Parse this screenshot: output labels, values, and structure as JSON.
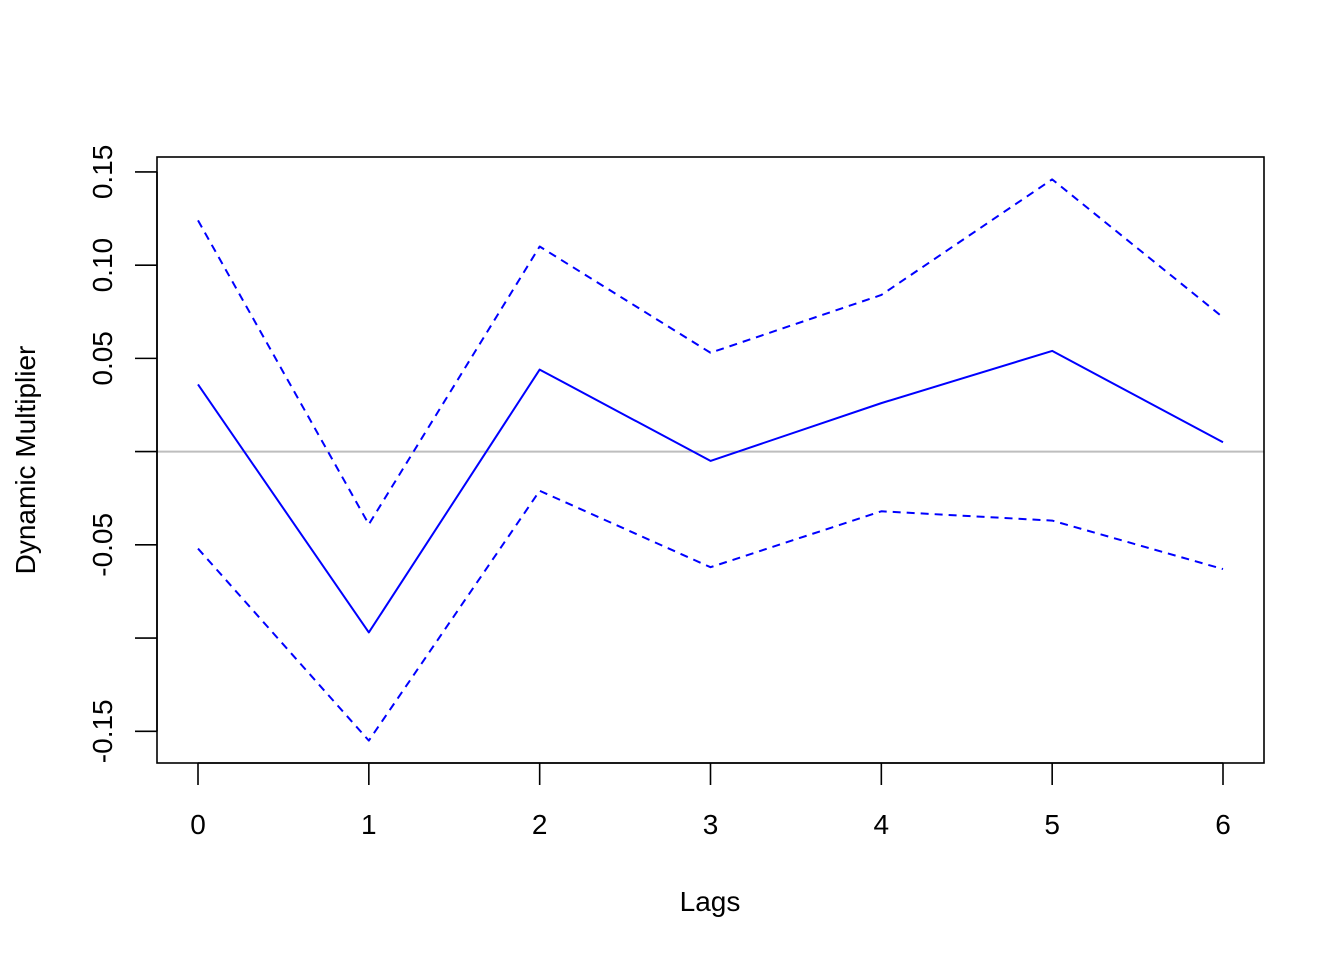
{
  "chart_data": {
    "type": "line",
    "title": "",
    "xlabel": "Lags",
    "ylabel": "Dynamic Multiplier",
    "x": [
      0,
      1,
      2,
      3,
      4,
      5,
      6
    ],
    "xlim": [
      -0.24,
      6.24
    ],
    "ylim": [
      -0.167,
      0.158
    ],
    "xticks": [
      "0",
      "1",
      "2",
      "3",
      "4",
      "5",
      "6"
    ],
    "yticks": [
      {
        "value": -0.15,
        "label": "-0.15"
      },
      {
        "value": -0.1,
        "label": ""
      },
      {
        "value": -0.05,
        "label": "-0.05"
      },
      {
        "value": 0.0,
        "label": ""
      },
      {
        "value": 0.05,
        "label": "0.05"
      },
      {
        "value": 0.1,
        "label": "0.10"
      },
      {
        "value": 0.15,
        "label": "0.15"
      }
    ],
    "reference_line": {
      "y": 0,
      "color": "#bebebe"
    },
    "grid": false,
    "series": [
      {
        "role": "estimate",
        "style": "solid",
        "color": "#0000ff",
        "values": [
          0.036,
          -0.097,
          0.044,
          -0.005,
          0.026,
          0.054,
          0.005
        ]
      },
      {
        "role": "upper",
        "style": "dashed",
        "color": "#0000ff",
        "values": [
          0.124,
          -0.039,
          0.11,
          0.053,
          0.084,
          0.146,
          0.072
        ]
      },
      {
        "role": "lower",
        "style": "dashed",
        "color": "#0000ff",
        "values": [
          -0.052,
          -0.155,
          -0.021,
          -0.062,
          -0.032,
          -0.037,
          -0.063
        ]
      }
    ]
  }
}
